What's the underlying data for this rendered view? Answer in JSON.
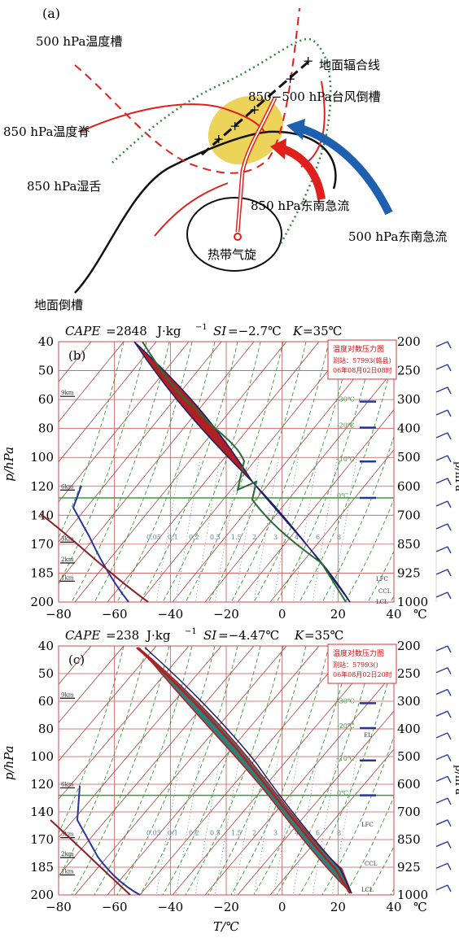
{
  "panel_a": {
    "label": "(a)",
    "labels": {
      "trough500": "500 hPa温度槽",
      "ridge850": "850 hPa温度脊",
      "moist850": "850 hPa湿舌",
      "convergence": "地面辐合线",
      "inverted_trough": "850−500 hPa台风倒槽",
      "jet850": "850 hPa东南急流",
      "jet500": "500 hPa东南急流",
      "cyclone": "热带气旋",
      "surface_trough": "地面倒槽"
    },
    "colors": {
      "red": "#e0201c",
      "blue": "#1f5fb0",
      "green": "#2a8a3a",
      "black": "#111111",
      "yellow": "#ecd35a"
    }
  },
  "axes": {
    "ylabel": "p/hPa",
    "xlabel": "T/℃",
    "unit_c": "℃",
    "x_ticks": [
      "−80",
      "−60",
      "−40",
      "−20",
      "0",
      "20",
      "40"
    ],
    "left_p_ticks": [
      "40",
      "50",
      "60",
      "80",
      "100",
      "120",
      "140",
      "170",
      "185",
      "200"
    ],
    "right_p_ticks": [
      "200",
      "250",
      "300",
      "400",
      "500",
      "600",
      "700",
      "850",
      "925",
      "1000"
    ],
    "height_labels": [
      "9km",
      "6km",
      "3km",
      "2km",
      "1km"
    ],
    "mixing_labels": [
      "0.05",
      "0.1",
      "0.2",
      "0.5",
      "1.5",
      "2",
      "3",
      "4",
      "6",
      "8"
    ],
    "iso_labels": [
      "-30℃",
      "-20℃",
      "-10℃",
      "0℃"
    ]
  },
  "panel_b": {
    "label": "(b)",
    "header": {
      "cape": "CAPE",
      "cape_val": "=2848",
      "unit": "J·kg",
      "sup": "−1",
      "si": "SI",
      "si_val": "=−2.7℃",
      "k": "K",
      "k_val": "=35℃"
    },
    "legend": [
      "温度对数压力图",
      "测站：57993(赣县)",
      "06年08月02日08时"
    ],
    "levels": [
      "LFC",
      "CCL",
      "LCL"
    ],
    "right_label": "p/hPa"
  },
  "panel_c": {
    "label": "(c)",
    "header": {
      "cape": "CAPE",
      "cape_val": "=238",
      "unit": "J·kg",
      "sup": "−1",
      "si": "SI",
      "si_val": "=−4.47℃",
      "k": "K",
      "k_val": "=35℃"
    },
    "legend": [
      "温度对数压力图",
      "测站：57993()",
      "06年08月02日20时"
    ],
    "levels": [
      "EL",
      "LFC",
      "CCL",
      "LCL"
    ],
    "right_label": "p/hPa"
  }
}
